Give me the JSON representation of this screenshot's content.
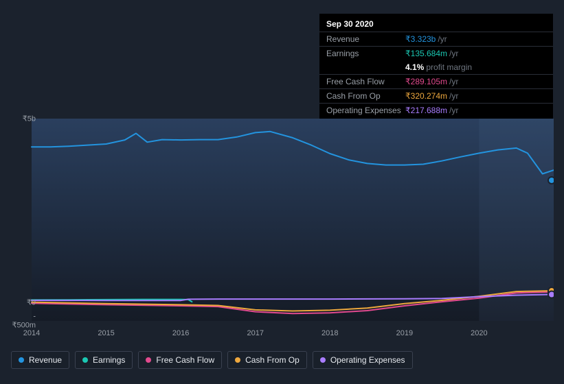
{
  "tooltip": {
    "date": "Sep 30 2020",
    "rows": [
      {
        "label": "Revenue",
        "currency": "₹",
        "amount": "3.323b",
        "suffix": "/yr",
        "color": "#2394df"
      },
      {
        "label": "Earnings",
        "currency": "₹",
        "amount": "135.684m",
        "suffix": "/yr",
        "color": "#1bc8b3"
      },
      {
        "label": "",
        "pm_value": "4.1%",
        "pm_text": "profit margin",
        "is_pm": true
      },
      {
        "label": "Free Cash Flow",
        "currency": "₹",
        "amount": "289.105m",
        "suffix": "/yr",
        "color": "#e24a8e"
      },
      {
        "label": "Cash From Op",
        "currency": "₹",
        "amount": "320.274m",
        "suffix": "/yr",
        "color": "#eea83e"
      },
      {
        "label": "Operating Expenses",
        "currency": "₹",
        "amount": "217.688m",
        "suffix": "/yr",
        "color": "#a97dff"
      }
    ]
  },
  "chart": {
    "type": "line",
    "background_color": "#1b222d",
    "plot_gradient_top": "#2a3f5e",
    "plot_gradient_bottom": "#151b26",
    "hover_band_color": "rgba(120,150,200,0.08)",
    "y_axis": {
      "min": -500,
      "max": 5000,
      "ticks": [
        {
          "v": 5000,
          "label": "₹5b"
        },
        {
          "v": 0,
          "label": "₹0"
        },
        {
          "v": -500,
          "label": "-₹500m"
        }
      ],
      "label_color": "#9aa0a8",
      "label_fontsize": 11
    },
    "x_axis": {
      "min": 2014.0,
      "max": 2021.0,
      "ticks": [
        {
          "v": 2014,
          "label": "2014"
        },
        {
          "v": 2015,
          "label": "2015"
        },
        {
          "v": 2016,
          "label": "2016"
        },
        {
          "v": 2017,
          "label": "2017"
        },
        {
          "v": 2018,
          "label": "2018"
        },
        {
          "v": 2019,
          "label": "2019"
        },
        {
          "v": 2020,
          "label": "2020"
        }
      ],
      "label_color": "#9aa0a8",
      "label_fontsize": 11
    },
    "hover_x": 2020.75,
    "hover_band_from": 2020.0,
    "hover_band_to": 2021.0,
    "marker_radius": 4,
    "line_width": 2,
    "series": [
      {
        "name": "Revenue",
        "color": "#2394df",
        "points": [
          [
            2014.0,
            4230
          ],
          [
            2014.25,
            4230
          ],
          [
            2014.5,
            4250
          ],
          [
            2014.75,
            4280
          ],
          [
            2015.0,
            4310
          ],
          [
            2015.25,
            4420
          ],
          [
            2015.4,
            4600
          ],
          [
            2015.55,
            4360
          ],
          [
            2015.75,
            4430
          ],
          [
            2016.0,
            4420
          ],
          [
            2016.25,
            4430
          ],
          [
            2016.5,
            4430
          ],
          [
            2016.75,
            4500
          ],
          [
            2017.0,
            4620
          ],
          [
            2017.2,
            4650
          ],
          [
            2017.5,
            4480
          ],
          [
            2017.75,
            4280
          ],
          [
            2018.0,
            4050
          ],
          [
            2018.25,
            3880
          ],
          [
            2018.5,
            3780
          ],
          [
            2018.75,
            3740
          ],
          [
            2019.0,
            3740
          ],
          [
            2019.25,
            3760
          ],
          [
            2019.5,
            3850
          ],
          [
            2019.75,
            3960
          ],
          [
            2020.0,
            4060
          ],
          [
            2020.25,
            4150
          ],
          [
            2020.5,
            4200
          ],
          [
            2020.65,
            4060
          ],
          [
            2020.85,
            3500
          ],
          [
            2021.0,
            3600
          ]
        ],
        "hover_value": 3323
      },
      {
        "name": "Earnings",
        "color": "#1bc8b3",
        "points": [
          [
            2014.0,
            70
          ],
          [
            2014.5,
            75
          ],
          [
            2015.0,
            80
          ],
          [
            2015.5,
            85
          ],
          [
            2016.0,
            85
          ],
          [
            2016.1,
            80
          ],
          [
            2016.15,
            20
          ]
        ],
        "end_at": 2016.15,
        "hover_value": 136
      },
      {
        "name": "Free Cash Flow",
        "color": "#e24a8e",
        "points": [
          [
            2014.0,
            -20
          ],
          [
            2015.0,
            -60
          ],
          [
            2016.0,
            -90
          ],
          [
            2016.5,
            -110
          ],
          [
            2017.0,
            -250
          ],
          [
            2017.5,
            -300
          ],
          [
            2018.0,
            -280
          ],
          [
            2018.5,
            -220
          ],
          [
            2019.0,
            -90
          ],
          [
            2019.5,
            20
          ],
          [
            2020.0,
            120
          ],
          [
            2020.5,
            260
          ],
          [
            2021.0,
            290
          ]
        ],
        "hover_value": 289
      },
      {
        "name": "Cash From Op",
        "color": "#eea83e",
        "points": [
          [
            2014.0,
            10
          ],
          [
            2015.0,
            -30
          ],
          [
            2016.0,
            -60
          ],
          [
            2016.5,
            -80
          ],
          [
            2017.0,
            -200
          ],
          [
            2017.5,
            -230
          ],
          [
            2018.0,
            -210
          ],
          [
            2018.5,
            -150
          ],
          [
            2019.0,
            -30
          ],
          [
            2019.5,
            60
          ],
          [
            2020.0,
            170
          ],
          [
            2020.5,
            300
          ],
          [
            2021.0,
            320
          ]
        ],
        "hover_value": 320
      },
      {
        "name": "Operating Expenses",
        "color": "#a97dff",
        "points": [
          [
            2014.0,
            60
          ],
          [
            2015.0,
            55
          ],
          [
            2016.0,
            55
          ],
          [
            2016.1,
            90
          ],
          [
            2016.5,
            95
          ],
          [
            2017.0,
            95
          ],
          [
            2018.0,
            95
          ],
          [
            2019.0,
            100
          ],
          [
            2019.5,
            110
          ],
          [
            2020.0,
            160
          ],
          [
            2020.5,
            200
          ],
          [
            2021.0,
            220
          ]
        ],
        "hover_value": 218
      }
    ]
  },
  "legend": {
    "items": [
      {
        "label": "Revenue",
        "color": "#2394df"
      },
      {
        "label": "Earnings",
        "color": "#1bc8b3"
      },
      {
        "label": "Free Cash Flow",
        "color": "#e24a8e"
      },
      {
        "label": "Cash From Op",
        "color": "#eea83e"
      },
      {
        "label": "Operating Expenses",
        "color": "#a97dff"
      }
    ],
    "border_color": "#3a4150",
    "text_color": "#e6e9ee",
    "fontsize": 12
  }
}
